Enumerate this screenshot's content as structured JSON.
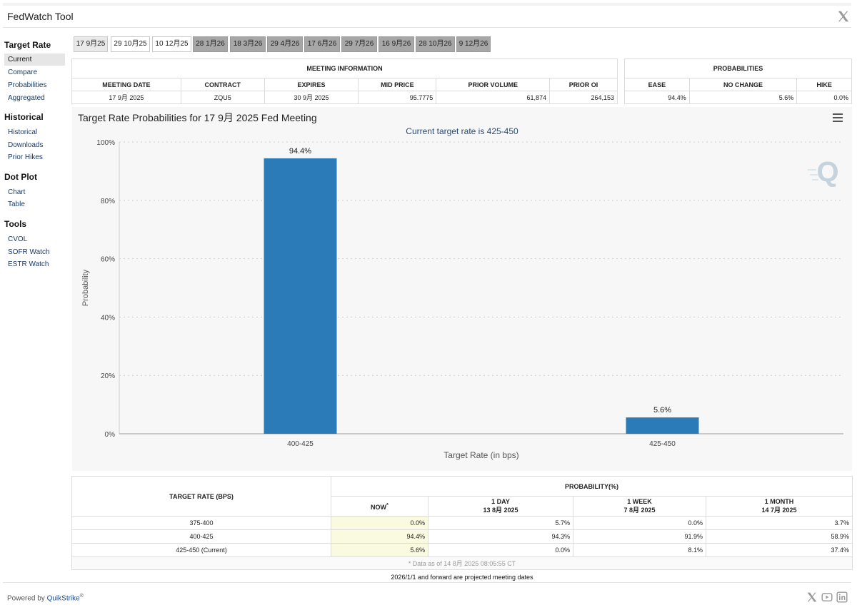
{
  "app_title": "FedWatch Tool",
  "sidebar": {
    "sections": [
      {
        "title": "Target Rate",
        "items": [
          "Current",
          "Compare",
          "Probabilities",
          "Aggregated"
        ]
      },
      {
        "title": "Historical",
        "items": [
          "Historical",
          "Downloads",
          "Prior Hikes"
        ]
      },
      {
        "title": "Dot Plot",
        "items": [
          "Chart",
          "Table"
        ]
      },
      {
        "title": "Tools",
        "items": [
          "CVOL",
          "SOFR Watch",
          "ESTR Watch"
        ]
      }
    ],
    "active_item": "Current"
  },
  "tabs": [
    "17 9月25",
    "29 10月25",
    "10 12月25",
    "28 1月26",
    "18 3月26",
    "29 4月26",
    "17 6月26",
    "29 7月26",
    "16 9月26",
    "28 10月26",
    "9 12月26"
  ],
  "selected_tab": "17 9月25",
  "meeting_info": {
    "caption": "MEETING INFORMATION",
    "headers": [
      "MEETING DATE",
      "CONTRACT",
      "EXPIRES",
      "MID PRICE",
      "PRIOR VOLUME",
      "PRIOR OI"
    ],
    "values": [
      "17 9月 2025",
      "ZQU5",
      "30 9月 2025",
      "95.7775",
      "61,874",
      "264,153"
    ]
  },
  "probabilities": {
    "caption": "PROBABILITIES",
    "headers": [
      "EASE",
      "NO CHANGE",
      "HIKE"
    ],
    "values": [
      "94.4%",
      "5.6%",
      "0.0%"
    ]
  },
  "chart_title": "Target Rate Probabilities for 17 9月 2025 Fed Meeting",
  "chart_data": {
    "type": "bar",
    "title": "Target Rate Probabilities for 17 9月 2025 Fed Meeting",
    "subtitle": "Current target rate is 425-450",
    "categories": [
      "400-425",
      "425-450"
    ],
    "values": [
      94.4,
      5.6
    ],
    "data_labels": [
      "94.4%",
      "5.6%"
    ],
    "xlabel": "Target Rate (in bps)",
    "ylabel": "Probability",
    "ylim": [
      0,
      100
    ],
    "y_ticks": [
      0,
      20,
      40,
      60,
      80,
      100
    ],
    "y_tick_labels": [
      "0%",
      "20%",
      "40%",
      "60%",
      "80%",
      "100%"
    ],
    "grid": true,
    "bar_color": "#2b7bb9"
  },
  "bottom_table": {
    "rate_header": "TARGET RATE (BPS)",
    "prob_header": "PROBABILITY(%)",
    "columns": [
      {
        "label": "NOW",
        "sup": "*",
        "date": ""
      },
      {
        "label": "1 DAY",
        "date": "13 8月 2025"
      },
      {
        "label": "1 WEEK",
        "date": "7 8月 2025"
      },
      {
        "label": "1 MONTH",
        "date": "14 7月 2025"
      }
    ],
    "rows": [
      {
        "rate": "375-400",
        "values": [
          "0.0%",
          "5.7%",
          "0.0%",
          "3.7%"
        ]
      },
      {
        "rate": "400-425",
        "values": [
          "94.4%",
          "94.3%",
          "91.9%",
          "58.9%"
        ]
      },
      {
        "rate": "425-450 (Current)",
        "values": [
          "5.6%",
          "0.0%",
          "8.1%",
          "37.4%"
        ]
      }
    ],
    "footnote": "* Data as of 14 8月 2025 08:05:55 CT"
  },
  "projected_note": "2026/1/1 and forward are projected meeting dates",
  "powered_by": {
    "prefix": "Powered by ",
    "brand": "QuikStrike",
    "mark": "®"
  },
  "icons": {
    "top_right": "x-logo-icon",
    "footer": [
      "x-logo-icon",
      "youtube-icon",
      "linkedin-icon"
    ],
    "watermark": "quikstrike-q-icon",
    "menu": "hamburger-menu-icon"
  }
}
